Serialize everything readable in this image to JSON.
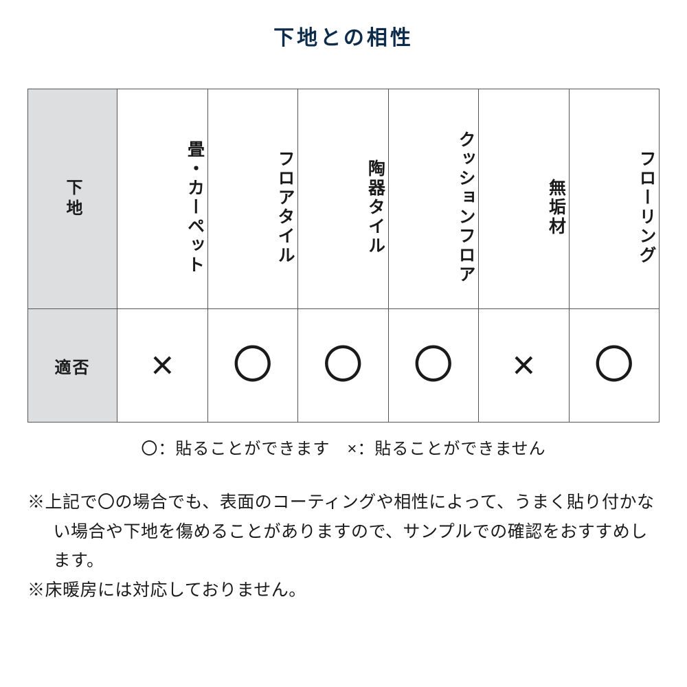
{
  "title": "下地との相性",
  "title_color": "#0d2b4a",
  "table": {
    "border_color": "#555555",
    "header_bg": "#dcdedf",
    "row1_label": "下地",
    "row2_label": "適否",
    "columns": [
      {
        "header": "畳・カーペット",
        "value": "×"
      },
      {
        "header": "フロアタイル",
        "value": "〇"
      },
      {
        "header": "陶器タイル",
        "value": "〇"
      },
      {
        "header": "クッションフロア",
        "value": "〇"
      },
      {
        "header": "無垢材",
        "value": "×"
      },
      {
        "header": "フローリング",
        "value": "〇"
      }
    ]
  },
  "legend": "〇：貼ることができます　×：貼ることができません",
  "notes": [
    "※上記で〇の場合でも、表面のコーティングや相性によって、うまく貼り付かない場合や下地を傷めることがありますので、サンプルでの確認をおすすめします。",
    "※床暖房には対応しておりません。"
  ],
  "colors": {
    "text": "#1a1a1a",
    "background": "#ffffff"
  }
}
